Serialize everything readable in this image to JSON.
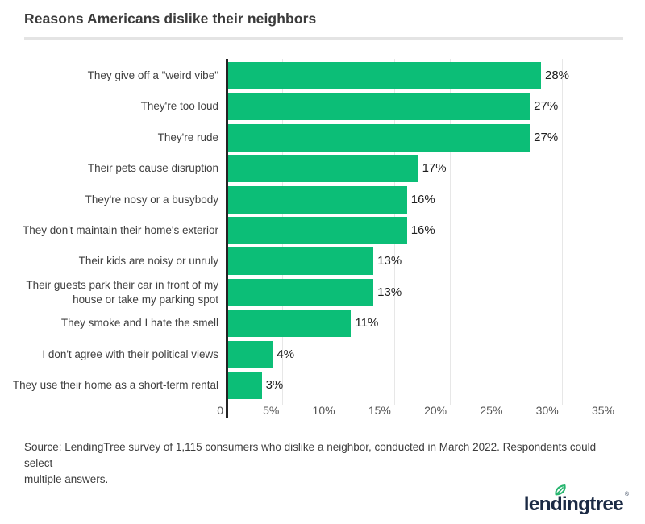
{
  "title": "Reasons Americans dislike their neighbors",
  "chart_data": {
    "type": "bar",
    "orientation": "horizontal",
    "title": "Reasons Americans dislike their neighbors",
    "categories": [
      "They give off a \"weird vibe\"",
      "They're too loud",
      "They're rude",
      "Their pets cause disruption",
      "They're nosy or a busybody",
      "They don't maintain their home's exterior",
      "Their kids are noisy or unruly",
      "Their guests park their car in front of my\nhouse or take my parking spot",
      "They smoke and I hate the smell",
      "I don't agree with their political views",
      "They use their home as a short-term rental"
    ],
    "values": [
      28,
      27,
      27,
      17,
      16,
      16,
      13,
      13,
      11,
      4,
      3
    ],
    "value_labels": [
      "28%",
      "27%",
      "27%",
      "17%",
      "16%",
      "16%",
      "13%",
      "13%",
      "11%",
      "4%",
      "3%"
    ],
    "x_ticks": [
      "0",
      "5%",
      "10%",
      "15%",
      "20%",
      "25%",
      "30%",
      "35%"
    ],
    "xlim": [
      0,
      35
    ],
    "grid": true,
    "legend": false,
    "bar_color": "#0cbe77",
    "axis_color": "#232323"
  },
  "source": {
    "text": "Source: LendingTree survey of 1,115 consumers who dislike a neighbor, conducted in March 2022. Respondents could select\nmultiple answers."
  },
  "logo": {
    "wordmark": "lendingtree",
    "registered": "®",
    "text_color": "#1b2a44",
    "leaf_color": "#28b56f"
  }
}
